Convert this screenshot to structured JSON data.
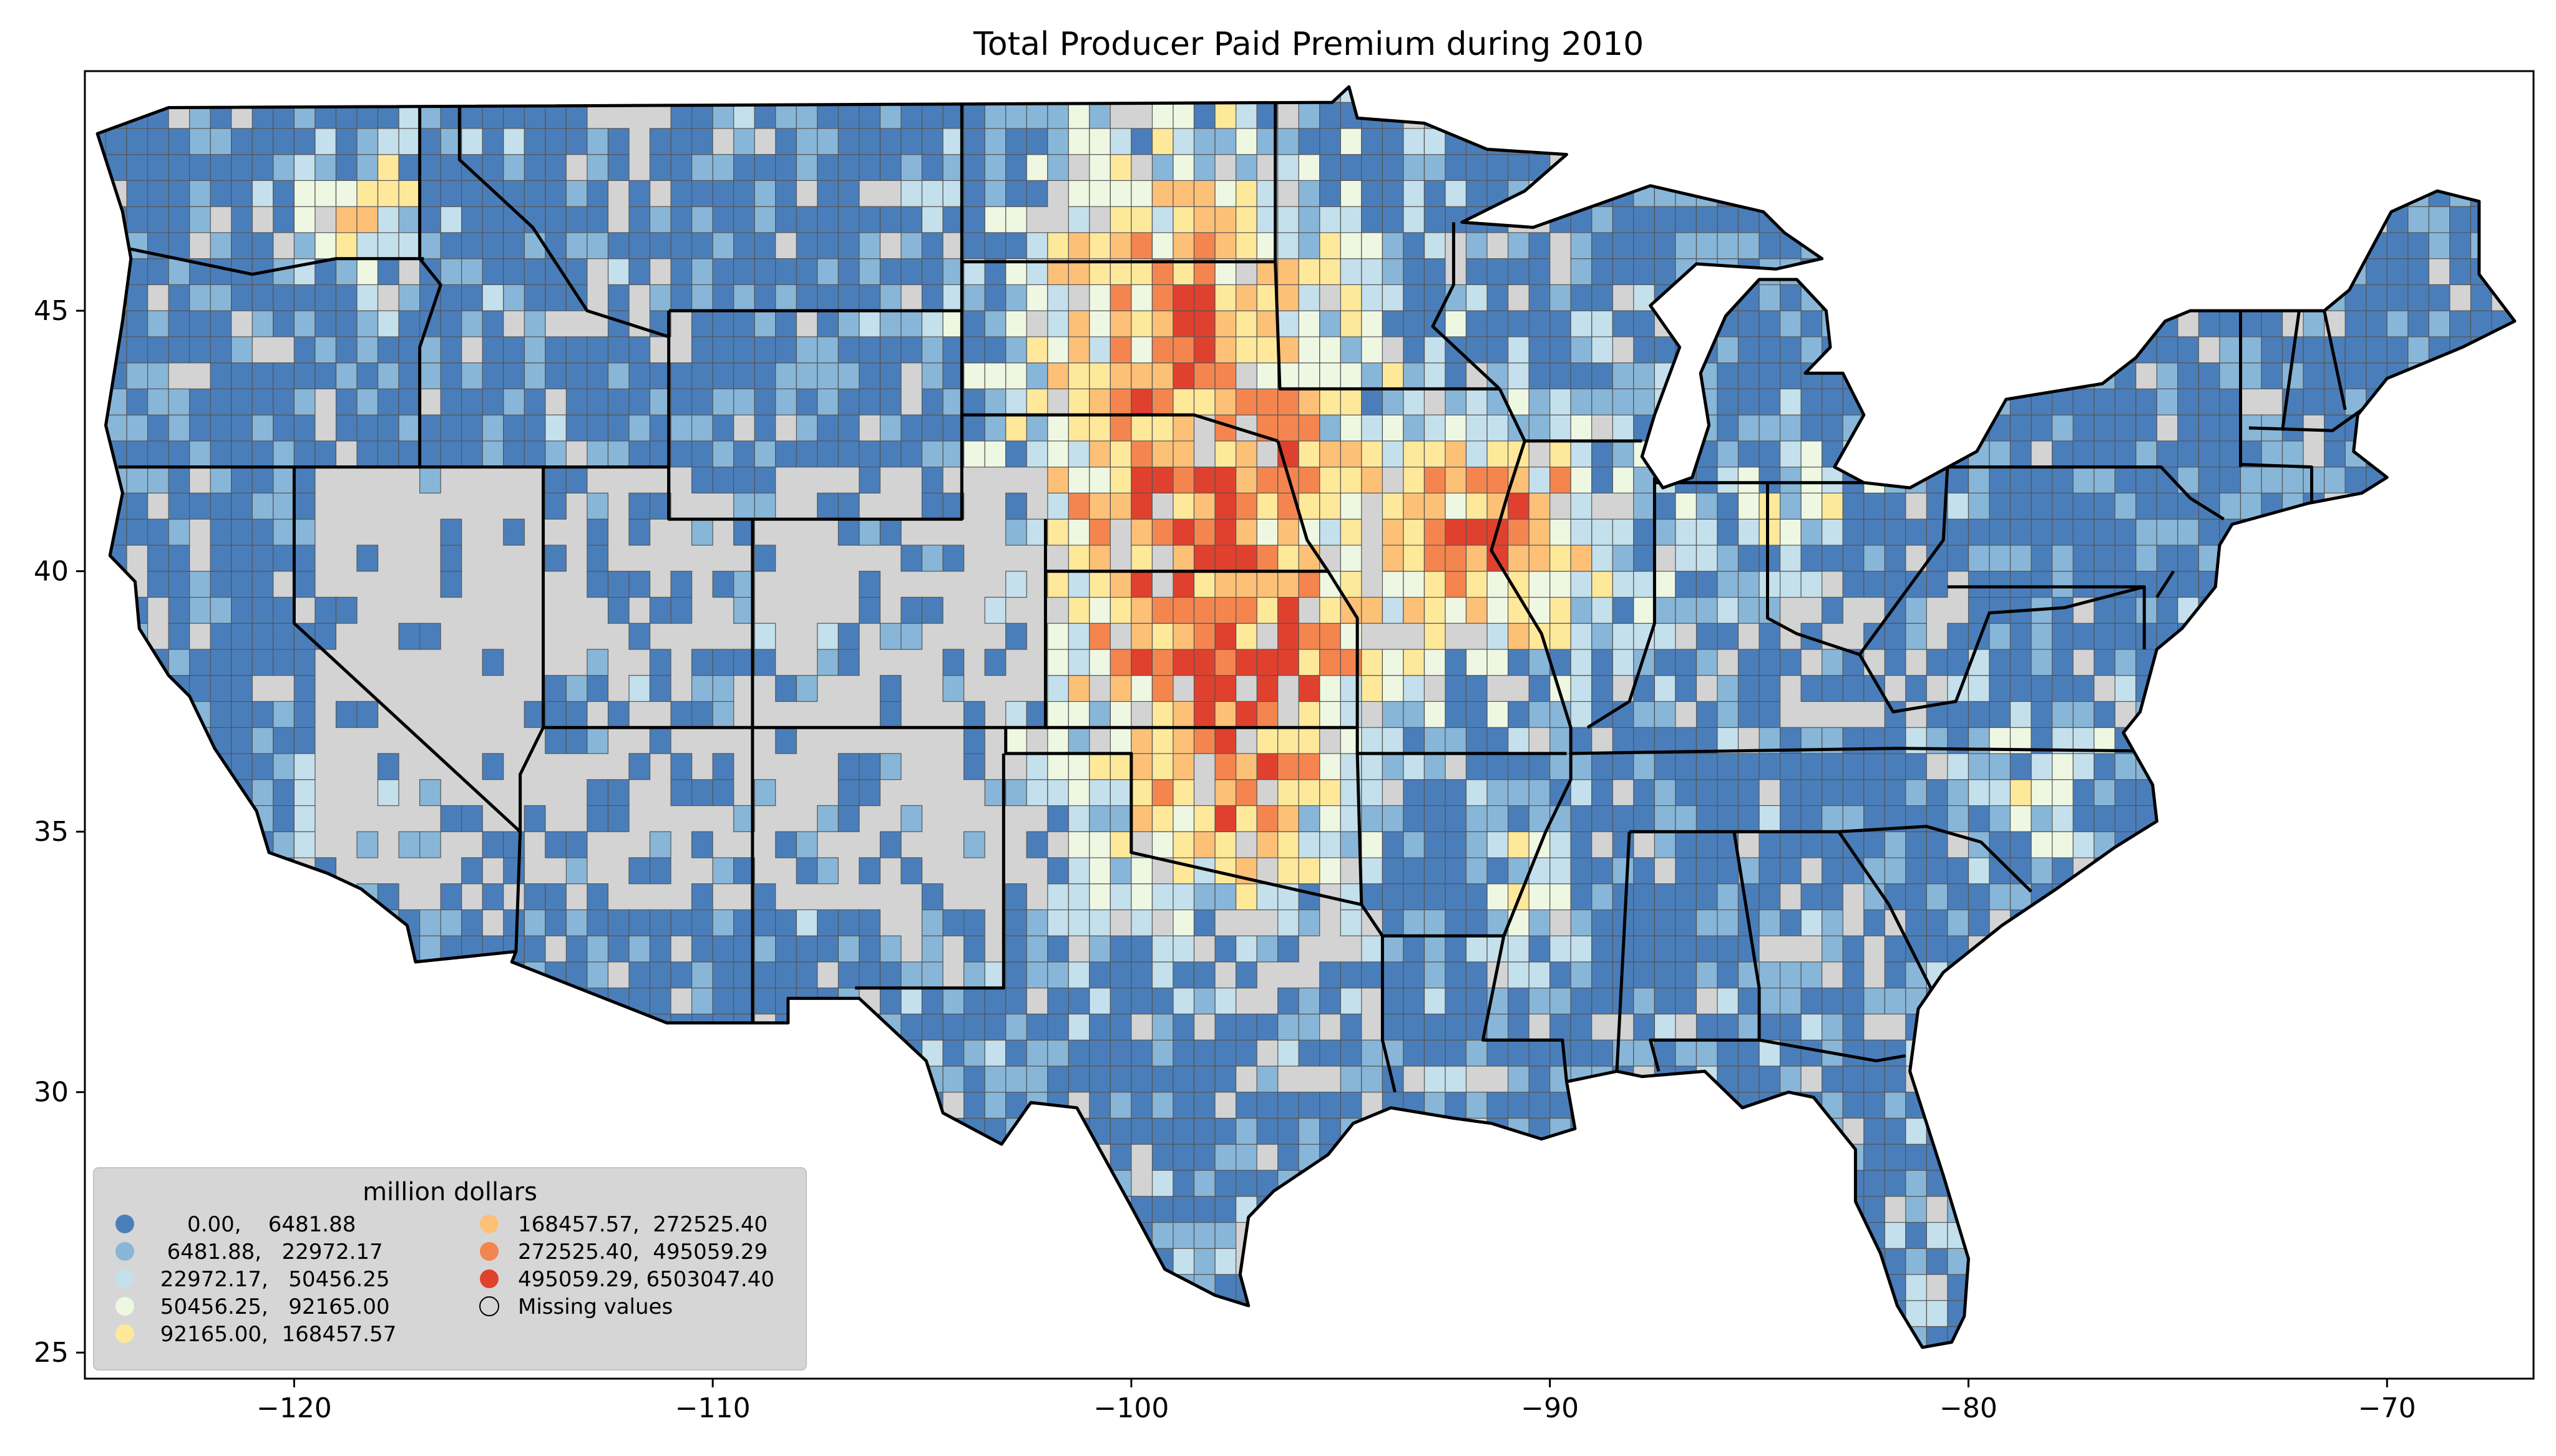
{
  "title": "Total Producer Paid Premium during 2010",
  "chart_data": {
    "type": "choropleth",
    "title": "Total Producer Paid Premium during 2010",
    "x_axis": {
      "ticks": [
        -120,
        -110,
        -100,
        -90,
        -80,
        -70
      ],
      "tick_labels": [
        "−120",
        "−110",
        "−100",
        "−90",
        "−80",
        "−70"
      ],
      "range": [
        -125,
        -66.5
      ]
    },
    "y_axis": {
      "ticks": [
        25,
        30,
        35,
        40,
        45
      ],
      "tick_labels": [
        "25",
        "30",
        "35",
        "40",
        "45"
      ],
      "range": [
        24.5,
        49.6
      ]
    },
    "legend": {
      "title": "million dollars",
      "placement": "lower-left",
      "entries": [
        {
          "label": "     0.00,    6481.88",
          "color": "#4a7ebb"
        },
        {
          "label": "  6481.88,   22972.17",
          "color": "#87b6d8"
        },
        {
          "label": " 22972.17,   50456.25",
          "color": "#c3e0ec"
        },
        {
          "label": " 50456.25,   92165.00",
          "color": "#eef7e2"
        },
        {
          "label": " 92165.00,  168457.57",
          "color": "#fee89a"
        },
        {
          "label": "168457.57,  272525.40",
          "color": "#fdc077"
        },
        {
          "label": "272525.40,  495059.29",
          "color": "#f4854f"
        },
        {
          "label": "495059.29, 6503047.40",
          "color": "#e0412e"
        },
        {
          "label": "Missing values",
          "color": "#d3d3d3"
        }
      ]
    },
    "background_color": "#ffffff",
    "missing_color": "#d3d3d3"
  }
}
